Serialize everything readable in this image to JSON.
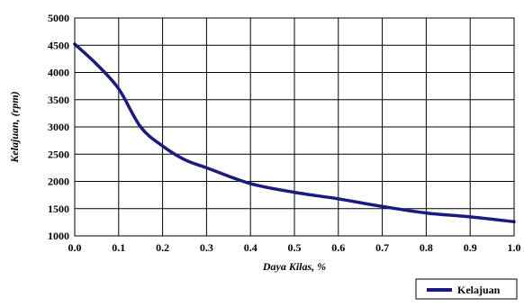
{
  "chart_data": {
    "type": "line",
    "title": "",
    "xlabel": "Daya Kilas, %",
    "ylabel": "Kelajuan, (rpm)",
    "xlim": [
      0.0,
      1.0
    ],
    "ylim": [
      1000,
      5000
    ],
    "x_ticks": [
      "0.0",
      "0.1",
      "0.2",
      "0.3",
      "0.4",
      "0.5",
      "0.6",
      "0.7",
      "0.8",
      "0.9",
      "1.0"
    ],
    "y_ticks": [
      "1000",
      "1500",
      "2000",
      "2500",
      "3000",
      "3500",
      "4000",
      "4500",
      "5000"
    ],
    "grid": true,
    "legend_position": "bottom-right",
    "series": [
      {
        "name": "Kelajuan",
        "color": "#1a1a80",
        "x": [
          0.0,
          0.05,
          0.1,
          0.15,
          0.2,
          0.25,
          0.3,
          0.4,
          0.5,
          0.6,
          0.7,
          0.8,
          0.9,
          1.0
        ],
        "y": [
          4520,
          4150,
          3700,
          3000,
          2650,
          2400,
          2250,
          1960,
          1800,
          1680,
          1540,
          1420,
          1350,
          1260
        ]
      }
    ]
  }
}
